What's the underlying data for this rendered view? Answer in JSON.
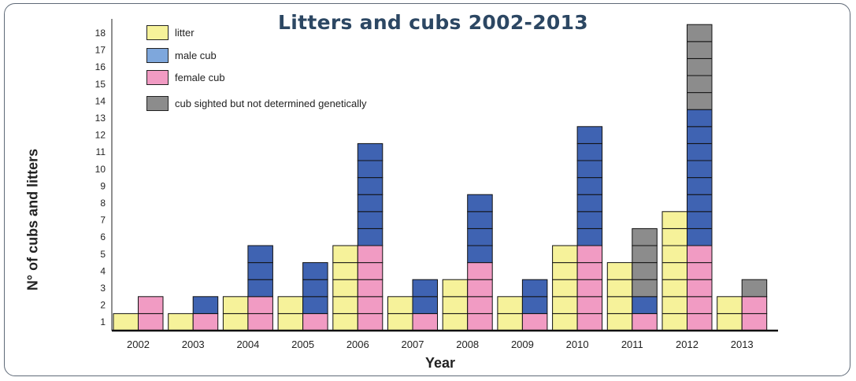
{
  "chart_data": {
    "type": "bar",
    "title": "Litters and cubs 2002-2013",
    "xlabel": "Year",
    "ylabel": "N° of cubs and litters",
    "y_ticks": [
      "1",
      "2",
      "3",
      "4",
      "5",
      "6",
      "7",
      "8",
      "9",
      "10",
      "11",
      "12",
      "13",
      "14",
      "15",
      "16",
      "17",
      "18"
    ],
    "categories": [
      "2002",
      "2003",
      "2004",
      "2005",
      "2006",
      "2007",
      "2008",
      "2009",
      "2010",
      "2011",
      "2012",
      "2013"
    ],
    "series": [
      {
        "name": "litter",
        "color": "#f6f29a",
        "values": [
          1,
          1,
          2,
          2,
          5,
          2,
          3,
          2,
          5,
          4,
          7,
          2
        ]
      },
      {
        "name": "male cub",
        "color": "#3f63b2",
        "values": [
          0,
          1,
          3,
          3,
          6,
          2,
          4,
          2,
          7,
          1,
          8,
          0
        ]
      },
      {
        "name": "female cub",
        "color": "#f19bc3",
        "values": [
          2,
          1,
          2,
          1,
          5,
          1,
          4,
          1,
          5,
          1,
          5,
          2
        ]
      },
      {
        "name": "cub sighted but not determined genetically",
        "color": "#8c8c8c",
        "values": [
          0,
          0,
          0,
          0,
          0,
          0,
          0,
          0,
          0,
          4,
          5,
          1
        ]
      }
    ],
    "ylim": [
      0,
      18
    ],
    "grid": false,
    "legend_position": "top-left"
  },
  "legend": [
    {
      "label": "litter",
      "color": "#f6f29a"
    },
    {
      "label": "male cub",
      "color": "#7ea7dc"
    },
    {
      "label": "female cub",
      "color": "#f19bc3"
    },
    {
      "label": "cub sighted but not determined genetically",
      "color": "#8c8c8c"
    }
  ]
}
